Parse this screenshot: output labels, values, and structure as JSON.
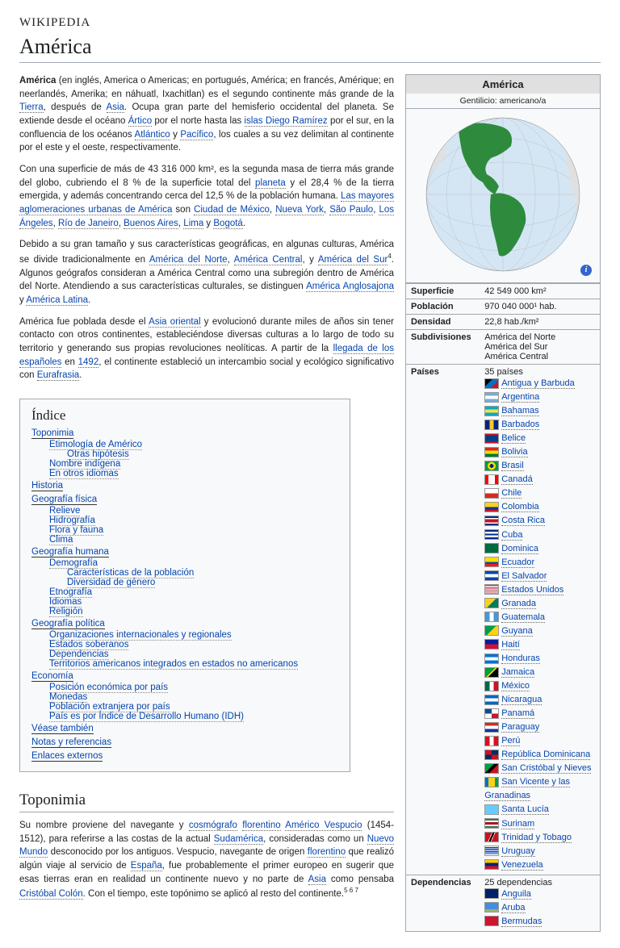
{
  "logo": "WIKIPEDIA",
  "title": "América",
  "paragraphs": {
    "p1_pre": "América",
    "p1": " (en inglés, America o Americas; en portugués, América; en francés, Amérique; en neerlandés, Amerika; en náhuatl, Ixachitlan) es el segundo continente más grande de la ",
    "p1_l1": "Tierra",
    "p1_m1": ", después de ",
    "p1_l2": "Asia",
    "p1_m2": ". Ocupa gran parte del hemisferio occidental del planeta. Se extiende desde el océano ",
    "p1_l3": "Ártico",
    "p1_m3": " por el norte hasta las ",
    "p1_l4": "islas Diego Ramírez",
    "p1_m4": " por el sur, en la confluencia de los océanos ",
    "p1_l5": "Atlántico",
    "p1_m5": " y ",
    "p1_l6": "Pacífico",
    "p1_m6": ", los cuales a su vez delimitan al continente por el este y el oeste, respectivamente.",
    "p2a": "Con una superficie de más de 43 316 000 km², es la segunda masa de tierra más grande del globo, cubriendo el 8 % de la superficie total del ",
    "p2_l1": "planeta",
    "p2b": " y el 28,4 % de la tierra emergida, y además concentrando cerca del 12,5 % de la población humana. ",
    "p2_l2": "Las mayores aglomeraciones urbanas de América",
    "p2c": " son ",
    "p2_cities": [
      "Ciudad de México",
      "Nueva York",
      "São Paulo",
      "Los Ángeles",
      "Río de Janeiro",
      "Buenos Aires",
      "Lima",
      "Bogotá"
    ],
    "p3a": "Debido a su gran tamaño y sus características geográficas, en algunas culturas, América se divide tradicionalmente en ",
    "p3_l1": "América del Norte",
    "p3_l2": "América Central",
    "p3_l3": "América del Sur",
    "p3b": ". Algunos geógrafos consideran a América Central como una subregión dentro de América del Norte. Atendiendo a sus características culturales, se distinguen ",
    "p3_l4": "América Anglosajona",
    "p3_l5": "América Latina",
    "p3c": ".",
    "p4a": "América fue poblada desde el ",
    "p4_l1": "Asia oriental",
    "p4b": " y evolucionó durante miles de años sin tener contacto con otros continentes, estableciéndose diversas culturas a lo largo de todo su territorio y generando sus propias revoluciones neolíticas. A partir de la ",
    "p4_l2": "llegada de los españoles",
    "p4c": " en ",
    "p4_l3": "1492",
    "p4d": ", el continente estableció un intercambio social y ecológico significativo con ",
    "p4_l4": "Eurafrasia",
    "p4e": "."
  },
  "toc": {
    "title": "Índice",
    "items": [
      {
        "label": "Toponimia",
        "children": [
          {
            "label": "Etimología de Américo",
            "children": [
              {
                "label": "Otras hipótesis"
              }
            ]
          },
          {
            "label": "Nombre indígena"
          },
          {
            "label": "En otros idiomas"
          }
        ]
      },
      {
        "label": "Historia"
      },
      {
        "label": "Geografía física",
        "children": [
          {
            "label": "Relieve"
          },
          {
            "label": "Hidrografía"
          },
          {
            "label": "Flora y fauna"
          },
          {
            "label": "Clima"
          }
        ]
      },
      {
        "label": "Geografía humana",
        "children": [
          {
            "label": "Demografía",
            "children": [
              {
                "label": "Características de la población"
              },
              {
                "label": "Diversidad de género"
              }
            ]
          },
          {
            "label": "Etnografía"
          },
          {
            "label": "Idiomas"
          },
          {
            "label": "Religión"
          }
        ]
      },
      {
        "label": "Geografía política",
        "children": [
          {
            "label": "Organizaciones internacionales y regionales"
          },
          {
            "label": "Estados soberanos"
          },
          {
            "label": "Dependencias"
          },
          {
            "label": "Territorios americanos integrados en estados no americanos"
          }
        ]
      },
      {
        "label": "Economía",
        "children": [
          {
            "label": "Posición económica por país"
          },
          {
            "label": "Monedas"
          },
          {
            "label": "Población extranjera por país"
          },
          {
            "label": "País es por Índice de Desarrollo Humano (IDH)"
          }
        ]
      },
      {
        "label": "Véase también"
      },
      {
        "label": "Notas y referencias"
      },
      {
        "label": "Enlaces externos"
      }
    ]
  },
  "section2": {
    "title": "Toponimia",
    "text_a": "Su nombre proviene del navegante y ",
    "l1": "cosmógrafo",
    "l2": "florentino",
    "l3": "Américo Vespucio",
    "text_b": " (1454-1512), para referirse a las costas de la actual ",
    "l4": "Sudamérica",
    "text_c": ", consideradas como un ",
    "l5": "Nuevo Mundo",
    "text_d": " desconocido por los antiguos. Vespucio, navegante de origen ",
    "l6": "florentino",
    "text_e": " que realizó algún viaje al servicio de ",
    "l7": "España",
    "text_f": ", fue probablemente el primer europeo en sugerir que esas tierras eran en realidad un continente nuevo y no parte de ",
    "l8": "Asia",
    "text_g": " como pensaba ",
    "l9": "Cristóbal Colón",
    "text_h": ". Con el tiempo, este topónimo se aplicó al resto del continente.",
    "sup": "5 6 7"
  },
  "infobox": {
    "title": "América",
    "subtitle": "Gentilicio: americano/a",
    "globe": {
      "ocean": "#d4e6f4",
      "land_other": "#e0e0e0",
      "land_highlight": "#2e8b3e",
      "grid": "#c0c0c0"
    },
    "rows": [
      {
        "label": "Superficie",
        "value": "42 549 000 km²"
      },
      {
        "label": "Población",
        "value": "970 040 000¹ hab."
      },
      {
        "label": "Densidad",
        "value": "22,8 hab./km²"
      },
      {
        "label": "Subdivisiones",
        "value": "América del Norte\nAmérica del Sur\nAmérica Central"
      }
    ],
    "countries_label": "Países",
    "countries_count": "35 países",
    "countries": [
      {
        "n": "Antigua y Barbuda",
        "c": "linear-gradient(135deg,#000 33%,#0072c6 33% 66%,#ce1126 66%)"
      },
      {
        "n": "Argentina",
        "c": "linear-gradient(#74acdf 33%,#fff 33% 66%,#74acdf 66%)"
      },
      {
        "n": "Bahamas",
        "c": "linear-gradient(#00abc9 33%,#fae042 33% 66%,#00abc9 66%)"
      },
      {
        "n": "Barbados",
        "c": "linear-gradient(90deg,#00267f 33%,#ffc726 33% 66%,#00267f 66%)"
      },
      {
        "n": "Belice",
        "c": "linear-gradient(#ce1126 15%,#003f87 15% 85%,#ce1126 85%)"
      },
      {
        "n": "Bolivia",
        "c": "linear-gradient(#d52b1e 33%,#ffe000 33% 66%,#007934 66%)"
      },
      {
        "n": "Brasil",
        "c": "radial-gradient(circle,#002776 25%,#fedf00 25% 50%,#009b3a 50%)"
      },
      {
        "n": "Canadá",
        "c": "linear-gradient(90deg,#ff0000 25%,#fff 25% 75%,#ff0000 75%)"
      },
      {
        "n": "Chile",
        "c": "linear-gradient(#fff 50%,#d52b1e 50%)"
      },
      {
        "n": "Colombia",
        "c": "linear-gradient(#fcd116 50%,#003893 50% 75%,#ce1126 75%)"
      },
      {
        "n": "Costa Rica",
        "c": "linear-gradient(#002b7f 17%,#fff 17% 33%,#ce1126 33% 67%,#fff 67% 83%,#002b7f 83%)"
      },
      {
        "n": "Cuba",
        "c": "repeating-linear-gradient(#002a8f 0 20%,#fff 20% 40%)"
      },
      {
        "n": "Dominica",
        "c": "linear-gradient(#006b3f,#006b3f)"
      },
      {
        "n": "Ecuador",
        "c": "linear-gradient(#ffdd00 50%,#034ea2 50% 75%,#ed1c24 75%)"
      },
      {
        "n": "El Salvador",
        "c": "linear-gradient(#0047ab 33%,#fff 33% 66%,#0047ab 66%)"
      },
      {
        "n": "Estados Unidos",
        "c": "repeating-linear-gradient(#b22234 0 8%,#fff 8% 16%)"
      },
      {
        "n": "Granada",
        "c": "linear-gradient(135deg,#fcd116 50%,#007a5e 50%)"
      },
      {
        "n": "Guatemala",
        "c": "linear-gradient(90deg,#4997d0 33%,#fff 33% 66%,#4997d0 66%)"
      },
      {
        "n": "Guyana",
        "c": "linear-gradient(135deg,#009e49 50%,#fcd116 50%)"
      },
      {
        "n": "Haití",
        "c": "linear-gradient(#00209f 50%,#d21034 50%)"
      },
      {
        "n": "Honduras",
        "c": "linear-gradient(#0073cf 33%,#fff 33% 66%,#0073cf 66%)"
      },
      {
        "n": "Jamaica",
        "c": "linear-gradient(135deg,#009b3a 45%,#fed100 45% 55%,#000 55%)"
      },
      {
        "n": "México",
        "c": "linear-gradient(90deg,#006847 33%,#fff 33% 66%,#ce1126 66%)"
      },
      {
        "n": "Nicaragua",
        "c": "linear-gradient(#0067c6 33%,#fff 33% 66%,#0067c6 66%)"
      },
      {
        "n": "Panamá",
        "c": "conic-gradient(#fff 0 25%,#d21034 25% 50%,#fff 50% 75%,#005293 75%)"
      },
      {
        "n": "Paraguay",
        "c": "linear-gradient(#d52b1e 33%,#fff 33% 66%,#0038a8 66%)"
      },
      {
        "n": "Perú",
        "c": "linear-gradient(90deg,#d91023 33%,#fff 33% 66%,#d91023 66%)"
      },
      {
        "n": "República Dominicana",
        "c": "conic-gradient(#002d62 0 25%,#ce1126 25% 50%,#002d62 50% 75%,#ce1126 75%)"
      },
      {
        "n": "San Cristóbal y Nieves",
        "c": "linear-gradient(135deg,#009e49 40%,#000 40% 60%,#ce1126 60%)"
      },
      {
        "n": "San Vicente y las Granadinas",
        "c": "linear-gradient(90deg,#0072c6 25%,#fcd116 25% 75%,#009e49 75%)"
      },
      {
        "n": "Santa Lucía",
        "c": "linear-gradient(#66ccff,#66ccff)"
      },
      {
        "n": "Surinam",
        "c": "linear-gradient(#377e3f 20%,#fff 20% 35%,#b40a2d 35% 65%,#fff 65% 80%,#377e3f 80%)"
      },
      {
        "n": "Trinidad y Tobago",
        "c": "linear-gradient(115deg,#ce1126 40%,#fff 40% 44%,#000 44% 56%,#fff 56% 60%,#ce1126 60%)"
      },
      {
        "n": "Uruguay",
        "c": "repeating-linear-gradient(#fff 0 11%,#0038a8 11% 22%)"
      },
      {
        "n": "Venezuela",
        "c": "linear-gradient(#ffcc00 33%,#00247d 33% 66%,#cf142b 66%)"
      }
    ],
    "deps_label": "Dependencias",
    "deps_count": "25 dependencias",
    "deps": [
      {
        "n": "Anguila",
        "c": "linear-gradient(#012169,#012169)"
      },
      {
        "n": "Aruba",
        "c": "linear-gradient(#418fde 75%,#ffd100 75% 82%,#418fde 82% 88%,#ffd100 88% 94%,#418fde 94%)"
      },
      {
        "n": "Bermudas",
        "c": "linear-gradient(#cf142b,#cf142b)"
      }
    ]
  }
}
